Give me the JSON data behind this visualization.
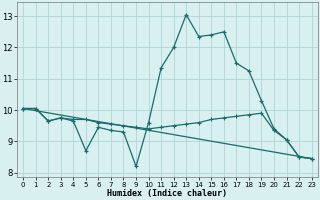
{
  "xlabel": "Humidex (Indice chaleur)",
  "bg_color": "#d8f0f0",
  "grid_color": "#b0d4d4",
  "line_color": "#1a6b6b",
  "xlim": [
    -0.5,
    23.5
  ],
  "ylim": [
    7.85,
    13.45
  ],
  "xticks": [
    0,
    1,
    2,
    3,
    4,
    5,
    6,
    7,
    8,
    9,
    10,
    11,
    12,
    13,
    14,
    15,
    16,
    17,
    18,
    19,
    20,
    21,
    22,
    23
  ],
  "yticks": [
    8,
    9,
    10,
    11,
    12,
    13
  ],
  "curve1_x": [
    0,
    1,
    2,
    3,
    4,
    5,
    6,
    7,
    8,
    9,
    10,
    11,
    12,
    13,
    14,
    15,
    16,
    17,
    18,
    19,
    20,
    21,
    22,
    23
  ],
  "curve1_y": [
    10.05,
    10.05,
    9.65,
    9.75,
    9.65,
    8.7,
    9.45,
    9.35,
    9.3,
    8.2,
    9.6,
    11.35,
    12.0,
    13.05,
    12.35,
    12.4,
    12.5,
    11.5,
    11.25,
    10.3,
    9.4,
    9.05,
    8.5,
    8.45
  ],
  "curve2_x": [
    0,
    1,
    2,
    3,
    4,
    5,
    6,
    7,
    8,
    9,
    10,
    11,
    12,
    13,
    14,
    15,
    16,
    17,
    18,
    19,
    20,
    21,
    22,
    23
  ],
  "curve2_y": [
    10.05,
    10.05,
    9.65,
    9.75,
    9.7,
    9.7,
    9.6,
    9.55,
    9.5,
    9.45,
    9.4,
    9.45,
    9.5,
    9.55,
    9.6,
    9.7,
    9.75,
    9.8,
    9.85,
    9.9,
    9.35,
    9.05,
    8.5,
    8.45
  ],
  "curve3_x": [
    0,
    23
  ],
  "curve3_y": [
    10.05,
    8.45
  ]
}
